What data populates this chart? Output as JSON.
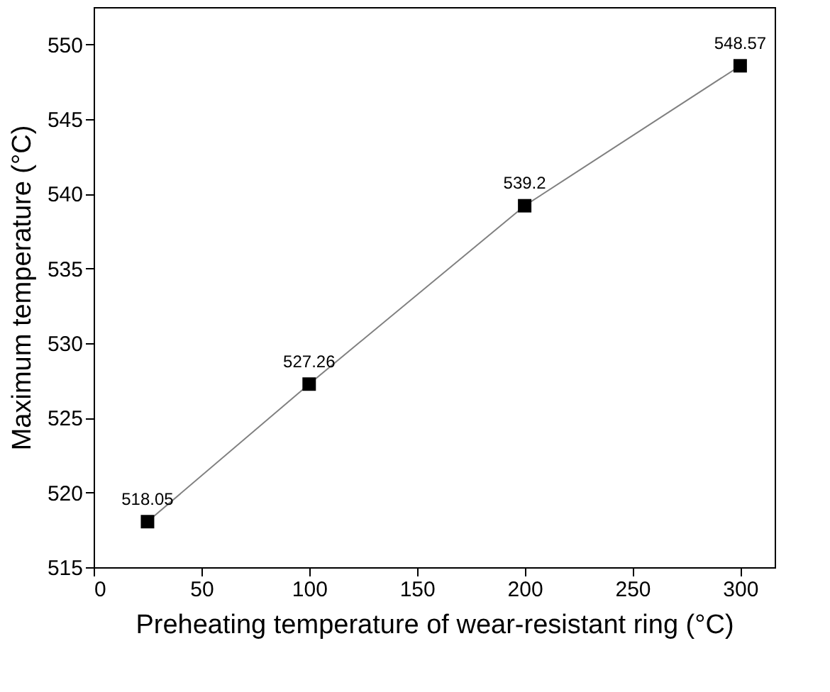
{
  "chart_data": {
    "type": "line",
    "xlabel": "Preheating temperature of wear-resistant ring (°C)",
    "ylabel": "Maximum temperature (°C)",
    "x": [
      25,
      100,
      200,
      300
    ],
    "series": [
      {
        "color": "#000000",
        "values": [
          518.05,
          527.26,
          539.2,
          548.57
        ]
      }
    ],
    "data_labels": true,
    "marker": "square",
    "line_style": "solid",
    "xlim": [
      0,
      316
    ],
    "xticks": [
      0,
      50,
      100,
      150,
      200,
      250,
      300
    ],
    "ylim": [
      515,
      552.5
    ],
    "yticks": [
      515,
      520,
      525,
      530,
      535,
      540,
      545,
      550
    ],
    "grid": false,
    "legend": false
  }
}
